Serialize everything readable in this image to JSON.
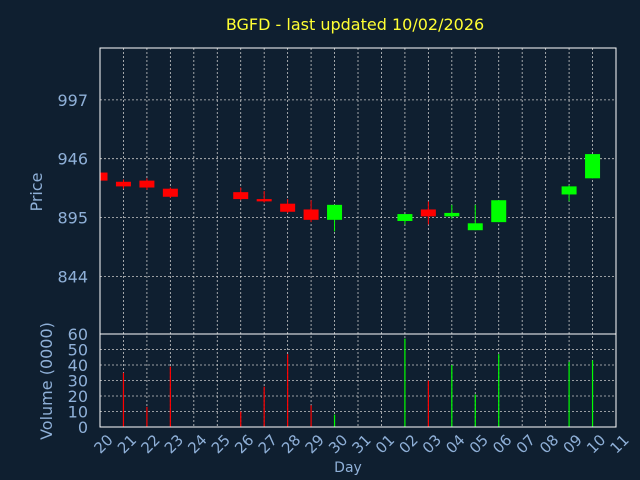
{
  "colors": {
    "background": "#0f1f30",
    "title": "#ffff33",
    "axis_text": "#8fb0d8",
    "frame": "#ffffff",
    "grid": "#c8c8c8",
    "up": "#00ff00",
    "down": "#ff0000"
  },
  "chart_data": {
    "type": "candlestick",
    "title": "BGFD - last updated 10/02/2026",
    "xlabel": "Day",
    "ylabel": "Price",
    "volume_ylabel": "Volume (0000)",
    "price_ylim": [
      794,
      1042
    ],
    "price_ticks": [
      844,
      895,
      946,
      997
    ],
    "volume_ylim": [
      0,
      60
    ],
    "volume_ticks": [
      0,
      10,
      20,
      30,
      40,
      50,
      60
    ],
    "grid": true,
    "x_ticks": [
      "20",
      "21",
      "22",
      "23",
      "24",
      "25",
      "26",
      "27",
      "28",
      "29",
      "30",
      "31",
      "01",
      "02",
      "03",
      "04",
      "05",
      "06",
      "07",
      "08",
      "09",
      "10",
      "11"
    ],
    "candles": [
      {
        "x": "20",
        "open": 934,
        "close": 927,
        "high": 934,
        "low": 926,
        "volume": 0
      },
      {
        "x": "21",
        "open": 926,
        "close": 922,
        "high": 928,
        "low": 920,
        "volume": 35
      },
      {
        "x": "22",
        "open": 927,
        "close": 921,
        "high": 929,
        "low": 919,
        "volume": 13
      },
      {
        "x": "23",
        "open": 920,
        "close": 913,
        "high": 921,
        "low": 912,
        "volume": 39
      },
      {
        "x": "26",
        "open": 917,
        "close": 911,
        "high": 921,
        "low": 910,
        "volume": 10
      },
      {
        "x": "27",
        "open": 911,
        "close": 909,
        "high": 918,
        "low": 908,
        "volume": 26
      },
      {
        "x": "28",
        "open": 907,
        "close": 900,
        "high": 911,
        "low": 899,
        "volume": 47
      },
      {
        "x": "29",
        "open": 902,
        "close": 893,
        "high": 910,
        "low": 891,
        "volume": 14
      },
      {
        "x": "30",
        "open": 893,
        "close": 906,
        "high": 906,
        "low": 883,
        "volume": 8
      },
      {
        "x": "02",
        "open": 892,
        "close": 898,
        "high": 898,
        "low": 889,
        "volume": 57
      },
      {
        "x": "03",
        "open": 902,
        "close": 896,
        "high": 909,
        "low": 889,
        "volume": 30
      },
      {
        "x": "04",
        "open": 896,
        "close": 899,
        "high": 906,
        "low": 894,
        "volume": 40
      },
      {
        "x": "05",
        "open": 884,
        "close": 890,
        "high": 906,
        "low": 884,
        "volume": 21
      },
      {
        "x": "06",
        "open": 891,
        "close": 910,
        "high": 910,
        "low": 891,
        "volume": 47
      },
      {
        "x": "09",
        "open": 915,
        "close": 922,
        "high": 923,
        "low": 909,
        "volume": 42
      },
      {
        "x": "10",
        "open": 929,
        "close": 950,
        "high": 950,
        "low": 929,
        "volume": 43
      }
    ]
  }
}
